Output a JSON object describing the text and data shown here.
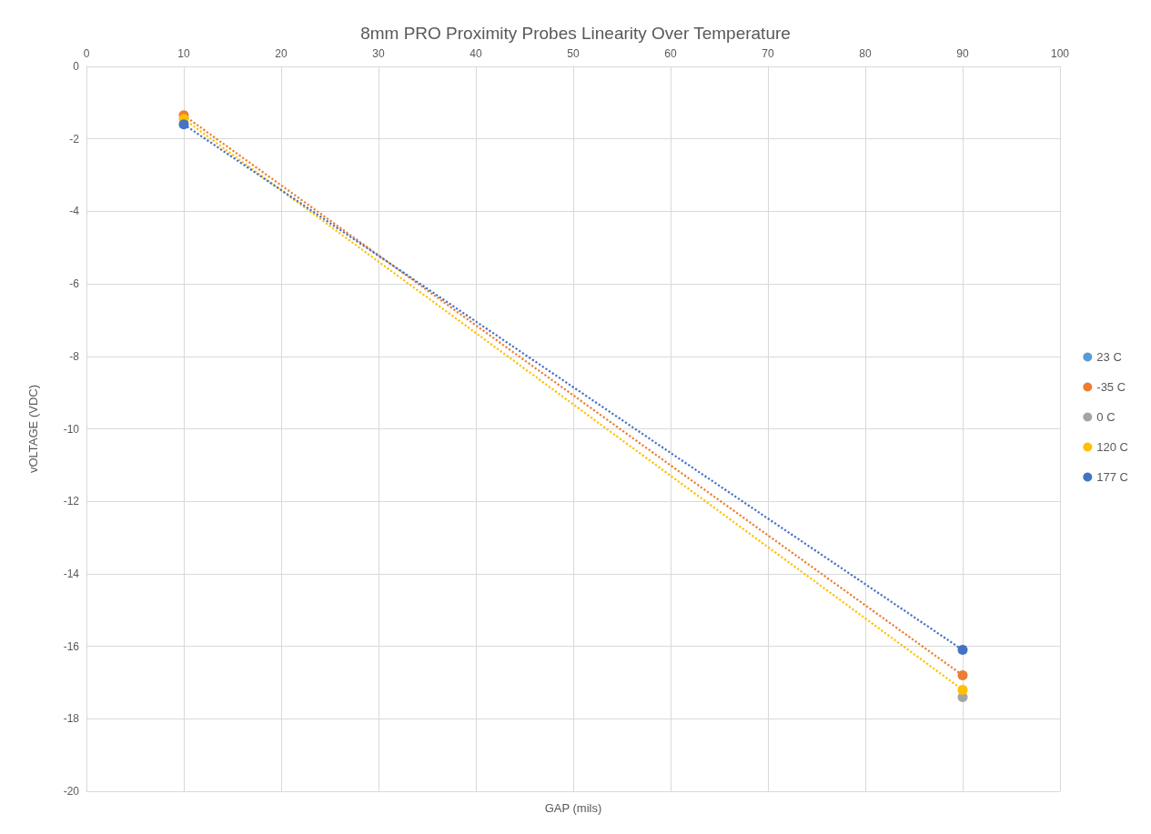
{
  "chart_data": {
    "type": "line",
    "title": "8mm PRO Proximity Probes Linearity Over Temperature",
    "xlabel": "GAP (mils)",
    "ylabel": "vOLTAGE (VDC)",
    "x": [
      10,
      90
    ],
    "series": [
      {
        "name": "23 C",
        "color": "#5b9bd5",
        "values": [
          null,
          null
        ]
      },
      {
        "name": "-35 C",
        "color": "#ed7d31",
        "values": [
          -1.35,
          -16.8
        ]
      },
      {
        "name": "0 C",
        "color": "#a5a5a5",
        "values": [
          null,
          -17.4
        ]
      },
      {
        "name": "120 C",
        "color": "#ffc000",
        "values": [
          -1.45,
          -17.2
        ]
      },
      {
        "name": "177 C",
        "color": "#4472c4",
        "values": [
          -1.6,
          -16.1
        ]
      }
    ],
    "xlim": [
      0,
      100
    ],
    "xticks": [
      0,
      10,
      20,
      30,
      40,
      50,
      60,
      70,
      80,
      90,
      100
    ],
    "ylim": [
      -20,
      0
    ],
    "yticks": [
      -20,
      -18,
      -16,
      -14,
      -12,
      -10,
      -8,
      -6,
      -4,
      -2,
      0
    ],
    "grid": true,
    "legend": "right",
    "marker": "circle",
    "line_style": "dotted"
  }
}
